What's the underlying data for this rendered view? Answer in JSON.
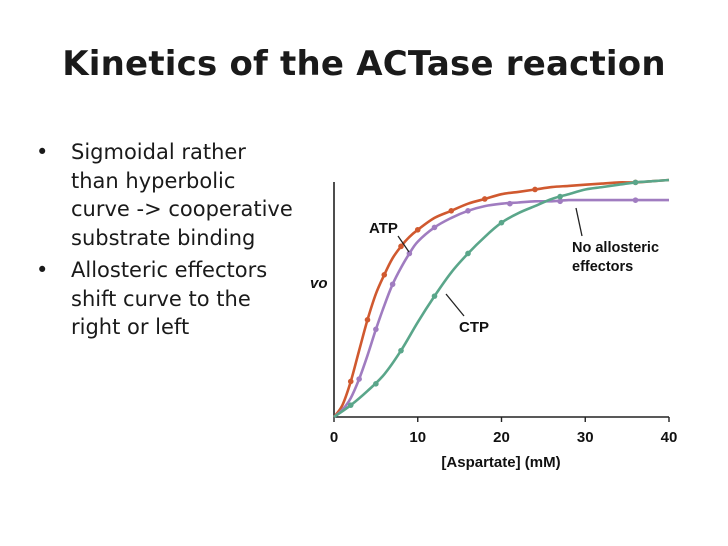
{
  "slide": {
    "title": "Kinetics of the ACTase reaction",
    "bullets": [
      "Sigmoidal rather than hyperbolic curve -> cooperative substrate binding",
      "Allosteric effectors shift curve to the right or left"
    ],
    "bullet_marker": "•"
  },
  "chart_data": {
    "type": "line",
    "xlabel": "[Aspartate] (mM)",
    "ylabel": "vo",
    "xlim": [
      0,
      40
    ],
    "ylim": [
      0,
      1
    ],
    "xticks": [
      0,
      10,
      20,
      30,
      40
    ],
    "grid": false,
    "series": [
      {
        "name": "ATP",
        "color": "#d0592f",
        "curve": {
          "x": [
            0,
            1,
            2,
            3,
            4,
            5,
            6,
            7,
            8,
            9,
            10,
            12,
            14,
            16,
            18,
            20,
            22,
            24,
            26,
            28,
            30,
            32,
            34,
            36,
            38,
            40
          ],
          "y": [
            0,
            0.05,
            0.15,
            0.28,
            0.41,
            0.52,
            0.6,
            0.67,
            0.72,
            0.76,
            0.79,
            0.84,
            0.87,
            0.9,
            0.92,
            0.94,
            0.95,
            0.96,
            0.97,
            0.975,
            0.98,
            0.985,
            0.99,
            0.99,
            0.995,
            1.0
          ]
        },
        "points": {
          "x": [
            2,
            4,
            6,
            8,
            10,
            14,
            18,
            24,
            36
          ],
          "y": [
            0.15,
            0.41,
            0.6,
            0.72,
            0.79,
            0.87,
            0.92,
            0.96,
            0.99
          ]
        }
      },
      {
        "name": "No allosteric effectors",
        "color": "#a07cc0",
        "curve": {
          "x": [
            0,
            1,
            2,
            3,
            4,
            5,
            6,
            7,
            8,
            9,
            10,
            12,
            14,
            16,
            18,
            20,
            22,
            24,
            26,
            28,
            30,
            32,
            34,
            36,
            38,
            40
          ],
          "y": [
            0,
            0.03,
            0.08,
            0.16,
            0.26,
            0.37,
            0.47,
            0.56,
            0.63,
            0.69,
            0.74,
            0.8,
            0.84,
            0.87,
            0.89,
            0.9,
            0.905,
            0.91,
            0.91,
            0.915,
            0.915,
            0.915,
            0.915,
            0.915,
            0.915,
            0.915
          ]
        },
        "points": {
          "x": [
            3,
            5,
            7,
            9,
            12,
            16,
            21,
            27,
            36
          ],
          "y": [
            0.16,
            0.37,
            0.56,
            0.69,
            0.8,
            0.87,
            0.9,
            0.91,
            0.915
          ]
        }
      },
      {
        "name": "CTP",
        "color": "#5aa68a",
        "curve": {
          "x": [
            0,
            2,
            4,
            6,
            8,
            10,
            12,
            14,
            16,
            18,
            20,
            22,
            24,
            26,
            28,
            30,
            32,
            34,
            36,
            38,
            40
          ],
          "y": [
            0,
            0.05,
            0.11,
            0.18,
            0.28,
            0.4,
            0.51,
            0.61,
            0.69,
            0.76,
            0.82,
            0.86,
            0.89,
            0.92,
            0.94,
            0.96,
            0.97,
            0.98,
            0.99,
            0.995,
            1.0
          ]
        },
        "points": {
          "x": [
            2,
            5,
            8,
            12,
            16,
            20,
            27,
            36
          ],
          "y": [
            0.05,
            0.14,
            0.28,
            0.51,
            0.69,
            0.82,
            0.93,
            0.99
          ]
        }
      }
    ],
    "annotations": [
      "ATP",
      "No allosteric effectors",
      "CTP"
    ]
  }
}
